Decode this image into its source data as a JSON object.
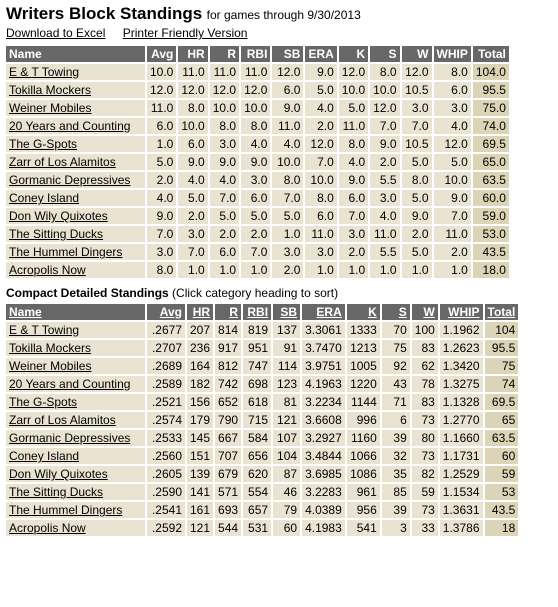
{
  "header": {
    "title": "Writers Block Standings",
    "subtitle": "for games through 9/30/2013",
    "download_link": "Download to Excel",
    "printer_link": "Printer Friendly Version"
  },
  "standings": {
    "columns": [
      "Name",
      "Avg",
      "HR",
      "R",
      "RBI",
      "SB",
      "ERA",
      "K",
      "S",
      "W",
      "WHIP",
      "Total"
    ],
    "rows": [
      [
        "E & T Towing",
        "10.0",
        "11.0",
        "11.0",
        "11.0",
        "12.0",
        "9.0",
        "12.0",
        "8.0",
        "12.0",
        "8.0",
        "104.0"
      ],
      [
        "Tokilla Mockers",
        "12.0",
        "12.0",
        "12.0",
        "12.0",
        "6.0",
        "5.0",
        "10.0",
        "10.0",
        "10.5",
        "6.0",
        "95.5"
      ],
      [
        "Weiner Mobiles",
        "11.0",
        "8.0",
        "10.0",
        "10.0",
        "9.0",
        "4.0",
        "5.0",
        "12.0",
        "3.0",
        "3.0",
        "75.0"
      ],
      [
        "20 Years and Counting",
        "6.0",
        "10.0",
        "8.0",
        "8.0",
        "11.0",
        "2.0",
        "11.0",
        "7.0",
        "7.0",
        "4.0",
        "74.0"
      ],
      [
        "The G-Spots",
        "1.0",
        "6.0",
        "3.0",
        "4.0",
        "4.0",
        "12.0",
        "8.0",
        "9.0",
        "10.5",
        "12.0",
        "69.5"
      ],
      [
        "Zarr of Los Alamitos",
        "5.0",
        "9.0",
        "9.0",
        "9.0",
        "10.0",
        "7.0",
        "4.0",
        "2.0",
        "5.0",
        "5.0",
        "65.0"
      ],
      [
        "Gormanic Depressives",
        "2.0",
        "4.0",
        "4.0",
        "3.0",
        "8.0",
        "10.0",
        "9.0",
        "5.5",
        "8.0",
        "10.0",
        "63.5"
      ],
      [
        "Coney Island",
        "4.0",
        "5.0",
        "7.0",
        "6.0",
        "7.0",
        "8.0",
        "6.0",
        "3.0",
        "5.0",
        "9.0",
        "60.0"
      ],
      [
        "Don Wily Quixotes",
        "9.0",
        "2.0",
        "5.0",
        "5.0",
        "5.0",
        "6.0",
        "7.0",
        "4.0",
        "9.0",
        "7.0",
        "59.0"
      ],
      [
        "The Sitting Ducks",
        "7.0",
        "3.0",
        "2.0",
        "2.0",
        "1.0",
        "11.0",
        "3.0",
        "11.0",
        "2.0",
        "11.0",
        "53.0"
      ],
      [
        "The Hummel Dingers",
        "3.0",
        "7.0",
        "6.0",
        "7.0",
        "3.0",
        "3.0",
        "2.0",
        "5.5",
        "5.0",
        "2.0",
        "43.5"
      ],
      [
        "Acropolis Now",
        "8.0",
        "1.0",
        "1.0",
        "1.0",
        "2.0",
        "1.0",
        "1.0",
        "1.0",
        "1.0",
        "1.0",
        "18.0"
      ]
    ]
  },
  "compact": {
    "heading": "Compact Detailed Standings",
    "hint": "(Click category heading to sort)",
    "columns": [
      "Name",
      "Avg",
      "HR",
      "R",
      "RBI",
      "SB",
      "ERA",
      "K",
      "S",
      "W",
      "WHIP",
      "Total"
    ],
    "rows": [
      [
        "E & T Towing",
        ".2677",
        "207",
        "814",
        "819",
        "137",
        "3.3061",
        "1333",
        "70",
        "100",
        "1.1962",
        "104"
      ],
      [
        "Tokilla Mockers",
        ".2707",
        "236",
        "917",
        "951",
        "91",
        "3.7470",
        "1213",
        "75",
        "83",
        "1.2623",
        "95.5"
      ],
      [
        "Weiner Mobiles",
        ".2689",
        "164",
        "812",
        "747",
        "114",
        "3.9751",
        "1005",
        "92",
        "62",
        "1.3420",
        "75"
      ],
      [
        "20 Years and Counting",
        ".2589",
        "182",
        "742",
        "698",
        "123",
        "4.1963",
        "1220",
        "43",
        "78",
        "1.3275",
        "74"
      ],
      [
        "The G-Spots",
        ".2521",
        "156",
        "652",
        "618",
        "81",
        "3.2234",
        "1144",
        "71",
        "83",
        "1.1328",
        "69.5"
      ],
      [
        "Zarr of Los Alamitos",
        ".2574",
        "179",
        "790",
        "715",
        "121",
        "3.6608",
        "996",
        "6",
        "73",
        "1.2770",
        "65"
      ],
      [
        "Gormanic Depressives",
        ".2533",
        "145",
        "667",
        "584",
        "107",
        "3.2927",
        "1160",
        "39",
        "80",
        "1.1660",
        "63.5"
      ],
      [
        "Coney Island",
        ".2560",
        "151",
        "707",
        "656",
        "104",
        "3.4844",
        "1066",
        "32",
        "73",
        "1.1731",
        "60"
      ],
      [
        "Don Wily Quixotes",
        ".2605",
        "139",
        "679",
        "620",
        "87",
        "3.6985",
        "1086",
        "35",
        "82",
        "1.2529",
        "59"
      ],
      [
        "The Sitting Ducks",
        ".2590",
        "141",
        "571",
        "554",
        "46",
        "3.2283",
        "961",
        "85",
        "59",
        "1.1534",
        "53"
      ],
      [
        "The Hummel Dingers",
        ".2541",
        "161",
        "693",
        "657",
        "79",
        "4.0389",
        "956",
        "39",
        "73",
        "1.3631",
        "43.5"
      ],
      [
        "Acropolis Now",
        ".2592",
        "121",
        "544",
        "531",
        "60",
        "4.1983",
        "541",
        "3",
        "33",
        "1.3786",
        "18"
      ]
    ]
  }
}
